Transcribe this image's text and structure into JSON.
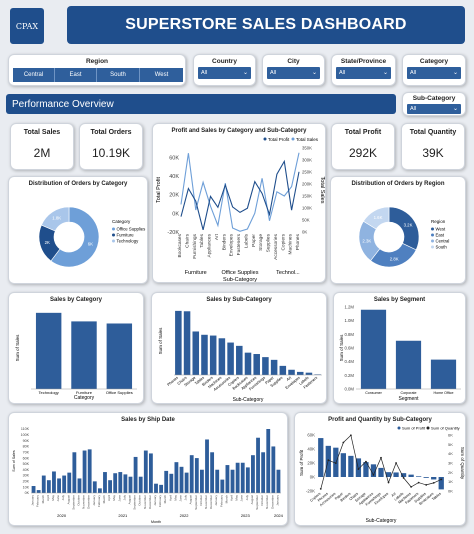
{
  "header": {
    "logo_text": "CPAX",
    "title": "SUPERSTORE SALES DASHBOARD"
  },
  "filters": {
    "region": {
      "label": "Region",
      "options": [
        "Central",
        "East",
        "South",
        "West"
      ]
    },
    "country": {
      "label": "Country",
      "value": "All"
    },
    "city": {
      "label": "City",
      "value": "All"
    },
    "state": {
      "label": "State/Province",
      "value": "All"
    },
    "category": {
      "label": "Category",
      "value": "All"
    },
    "subcategory": {
      "label": "Sub-Category",
      "value": "All"
    }
  },
  "performance_label": "Performance  Overview",
  "kpis": {
    "total_sales": {
      "label": "Total Sales",
      "value": "2M"
    },
    "total_orders": {
      "label": "Total Orders",
      "value": "10.19K"
    },
    "total_profit": {
      "label": "Total Profit",
      "value": "292K"
    },
    "total_quantity": {
      "label": "Total Quantity",
      "value": "39K"
    }
  },
  "colors": {
    "navy": "#1f4e8c",
    "bar": "#2e5d9a",
    "light": "#8fb3e0",
    "line": "#6e9fd8"
  },
  "chart_data": [
    {
      "id": "profit_sales_by_subcat",
      "type": "line",
      "title": "Profit and Sales by Category and Sub-Category",
      "legend": [
        "Total Profit",
        "Total Sales"
      ],
      "legend_position": "top-right",
      "ylabel_left": "Total Profit",
      "ylabel_right": "Total Sales",
      "xlabel": "Sub-Category",
      "yticks_left": [
        "60K",
        "40K",
        "20K",
        "0K",
        "-20K"
      ],
      "yticks_right": [
        "350K",
        "300K",
        "250K",
        "200K",
        "150K",
        "100K",
        "50K",
        "0K"
      ],
      "ylim_left": [
        -20000,
        70000
      ],
      "ylim_right": [
        0,
        350000
      ],
      "categories": [
        "Bookcases",
        "Chairs",
        "Furnishings",
        "Tables",
        "Appliances",
        "Art",
        "Binders",
        "Envelopes",
        "Fasteners",
        "Labels",
        "Paper",
        "Storage",
        "Supplies",
        "Accessories",
        "Copiers",
        "Machines",
        "Phones"
      ],
      "groups": [
        "Furniture",
        "Office Supplies",
        "Technol..."
      ],
      "series": [
        {
          "name": "Total Profit",
          "values": [
            -3500,
            26600,
            13000,
            -17700,
            18100,
            6500,
            30200,
            6900,
            950,
            5500,
            34000,
            21300,
            -1200,
            41900,
            55600,
            3400,
            44500
          ]
        },
        {
          "name": "Total Sales",
          "values": [
            114900,
            328400,
            91700,
            206900,
            107500,
            27100,
            203400,
            16500,
            3000,
            12500,
            78500,
            223800,
            46700,
            167400,
            150000,
            189200,
            330000
          ]
        }
      ]
    },
    {
      "id": "orders_by_category",
      "type": "pie",
      "title": "Distribution of Orders by Category",
      "legend_title": "Category",
      "legend": [
        "Office Supplies",
        "Furniture",
        "Technology"
      ],
      "legend_position": "right",
      "values": [
        6026,
        2121,
        1847
      ],
      "labels": [
        "6K",
        "2K",
        "1.8K"
      ]
    },
    {
      "id": "orders_by_region",
      "type": "pie",
      "title": "Distribution of Orders by Region",
      "legend_title": "Region",
      "legend": [
        "West",
        "East",
        "Central",
        "South"
      ],
      "legend_position": "right",
      "values": [
        3203,
        2848,
        2323,
        1620
      ],
      "labels": [
        "3.2K",
        "2.8K",
        "2.3K",
        "1.6K"
      ]
    },
    {
      "id": "sales_by_category",
      "type": "bar",
      "title": "Sales by Category",
      "xlabel": "Category",
      "ylabel": "Sum of Sales",
      "categories": [
        "Technology",
        "Furniture",
        "Office Supplies"
      ],
      "values": [
        836000,
        742000,
        719000
      ],
      "ylim": [
        0,
        900000
      ]
    },
    {
      "id": "sales_by_subcategory",
      "type": "bar",
      "title": "Sales by Sub-Category",
      "xlabel": "Sub-Category",
      "ylabel": "Sum of Sales",
      "categories": [
        "Phones",
        "Chairs",
        "Storage",
        "Tables",
        "Binders",
        "Machines",
        "Accessories",
        "Copiers",
        "Bookcases",
        "Appliances",
        "Furnishings",
        "Paper",
        "Supplies",
        "Art",
        "Envelopes",
        "Labels",
        "Fasteners"
      ],
      "values": [
        330000,
        328000,
        224000,
        207000,
        203000,
        189000,
        167000,
        150000,
        115000,
        108000,
        92000,
        78000,
        47000,
        27000,
        16000,
        12000,
        3000
      ],
      "ylim": [
        0,
        350000
      ]
    },
    {
      "id": "sales_by_segment",
      "type": "bar",
      "title": "Sales by Segment",
      "xlabel": "Segment",
      "ylabel": "Sum of Sales",
      "categories": [
        "Consumer",
        "Corporate",
        "Home Office"
      ],
      "values": [
        1160000,
        706000,
        430000
      ],
      "yticks": [
        "1.2M",
        "1.0M",
        "0.8M",
        "0.6M",
        "0.4M",
        "0.2M",
        "0.0M"
      ],
      "ylim": [
        0,
        1200000
      ]
    },
    {
      "id": "sales_by_ship_date",
      "type": "bar",
      "title": "Sales by Ship Date",
      "xlabel": "Month",
      "ylabel": "Sum of Sales",
      "years": [
        "2020",
        "2021",
        "2022",
        "2023",
        "2024"
      ],
      "yticks": [
        "110K",
        "100K",
        "90K",
        "80K",
        "70K",
        "60K",
        "50K",
        "40K",
        "30K",
        "20K",
        "10K",
        "0K"
      ],
      "ylim": [
        0,
        110000
      ],
      "values": [
        12000,
        5000,
        30000,
        22000,
        37000,
        25000,
        30000,
        35000,
        70000,
        25000,
        73000,
        75000,
        20000,
        8000,
        36000,
        22000,
        34000,
        36000,
        32000,
        28000,
        62000,
        28000,
        73000,
        68000,
        16000,
        14000,
        38000,
        33000,
        53000,
        45000,
        35000,
        65000,
        60000,
        40000,
        92000,
        70000,
        40000,
        23000,
        48000,
        40000,
        52000,
        52000,
        44000,
        65000,
        95000,
        70000,
        110000,
        80000,
        40000
      ]
    },
    {
      "id": "profit_qty_by_subcat",
      "type": "bar",
      "title": "Profit and Quantity by Sub-Category",
      "legend": [
        "Sum of Profit",
        "Sum of Quantity"
      ],
      "legend_position": "top-right",
      "xlabel": "Sub-Category",
      "ylabel_left": "Sum of Profit",
      "ylabel_right": "Sum of Quantity",
      "yticks_left": [
        "60K",
        "40K",
        "20K",
        "0K",
        "-20K"
      ],
      "yticks_right": [
        "6K",
        "5K",
        "4K",
        "3K",
        "2K",
        "1K",
        "0K"
      ],
      "ylim_left": [
        -20000,
        60000
      ],
      "ylim_right": [
        0,
        6000
      ],
      "categories": [
        "Copiers",
        "Phones",
        "Accessories",
        "Paper",
        "Binders",
        "Chairs",
        "Storage",
        "Appliances",
        "Furnishings",
        "Envelopes",
        "Art",
        "Labels",
        "Machines",
        "Fasteners",
        "Supplies",
        "Bookcases",
        "Tables"
      ],
      "series": [
        {
          "name": "Sum of Profit",
          "values": [
            55600,
            44500,
            41900,
            34000,
            30200,
            26600,
            21300,
            18100,
            13000,
            6900,
            6500,
            5500,
            3400,
            950,
            -1200,
            -3500,
            -17700
          ]
        },
        {
          "name": "Sum of Quantity",
          "values": [
            230,
            3300,
            2980,
            5200,
            5970,
            2350,
            3150,
            1730,
            3560,
            910,
            3000,
            1400,
            440,
            900,
            650,
            870,
            1240
          ]
        }
      ]
    }
  ]
}
